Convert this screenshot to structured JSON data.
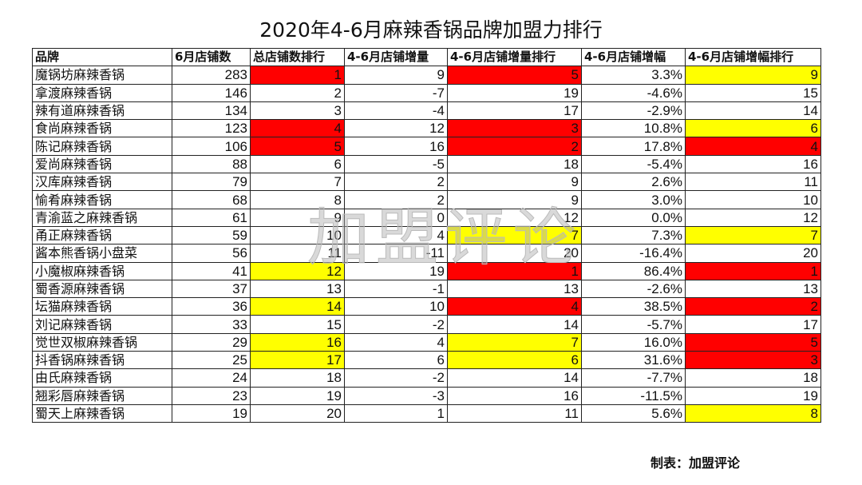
{
  "title": "2020年4-6月麻辣香锅品牌加盟力排行",
  "colors": {
    "red": "#ff0000",
    "yellow": "#ffff00"
  },
  "headers": [
    "品牌",
    "6月店铺数",
    "总店铺数排行",
    "4-6月店铺增量",
    "4-6月店铺增量排行",
    "4-6月店铺增幅",
    "4-6月店铺增幅排行"
  ],
  "rows": [
    {
      "cells": [
        "魔锅坊麻辣香锅",
        "283",
        "1",
        "9",
        "5",
        "3.3%",
        "9"
      ],
      "hl": [
        "",
        "",
        "red",
        "",
        "red",
        "",
        "yellow"
      ]
    },
    {
      "cells": [
        "拿渡麻辣香锅",
        "146",
        "2",
        "-7",
        "19",
        "-4.6%",
        "15"
      ],
      "hl": [
        "",
        "",
        "",
        "",
        "",
        "",
        ""
      ]
    },
    {
      "cells": [
        "辣有道麻辣香锅",
        "134",
        "3",
        "-4",
        "17",
        "-2.9%",
        "14"
      ],
      "hl": [
        "",
        "",
        "",
        "",
        "",
        "",
        ""
      ]
    },
    {
      "cells": [
        "食尚麻辣香锅",
        "123",
        "4",
        "12",
        "3",
        "10.8%",
        "6"
      ],
      "hl": [
        "",
        "",
        "red",
        "",
        "red",
        "",
        "yellow"
      ]
    },
    {
      "cells": [
        "陈记麻辣香锅",
        "106",
        "5",
        "16",
        "2",
        "17.8%",
        "4"
      ],
      "hl": [
        "",
        "",
        "red",
        "",
        "red",
        "",
        "red"
      ]
    },
    {
      "cells": [
        "爱尚麻辣香锅",
        "88",
        "6",
        "-5",
        "18",
        "-5.4%",
        "16"
      ],
      "hl": [
        "",
        "",
        "",
        "",
        "",
        "",
        ""
      ]
    },
    {
      "cells": [
        "汉库麻辣香锅",
        "79",
        "7",
        "2",
        "9",
        "2.6%",
        "11"
      ],
      "hl": [
        "",
        "",
        "",
        "",
        "",
        "",
        ""
      ]
    },
    {
      "cells": [
        "愉肴麻辣香锅",
        "68",
        "8",
        "2",
        "9",
        "3.0%",
        "10"
      ],
      "hl": [
        "",
        "",
        "",
        "",
        "",
        "",
        ""
      ]
    },
    {
      "cells": [
        "青渝蓝之麻辣香锅",
        "61",
        "9",
        "0",
        "12",
        "0.0%",
        "12"
      ],
      "hl": [
        "",
        "",
        "",
        "",
        "",
        "",
        ""
      ]
    },
    {
      "cells": [
        "甬正麻辣香锅",
        "59",
        "10",
        "4",
        "7",
        "7.3%",
        "7"
      ],
      "hl": [
        "",
        "",
        "",
        "",
        "yellow",
        "",
        "yellow"
      ]
    },
    {
      "cells": [
        "酱本熊香锅小盘菜",
        "56",
        "11",
        "-11",
        "20",
        "-16.4%",
        "20"
      ],
      "hl": [
        "",
        "",
        "",
        "",
        "",
        "",
        ""
      ]
    },
    {
      "cells": [
        "小魔椒麻辣香锅",
        "41",
        "12",
        "19",
        "1",
        "86.4%",
        "1"
      ],
      "hl": [
        "",
        "",
        "yellow",
        "",
        "red",
        "",
        "red"
      ]
    },
    {
      "cells": [
        "蜀香源麻辣香锅",
        "37",
        "13",
        "-1",
        "13",
        "-2.6%",
        "13"
      ],
      "hl": [
        "",
        "",
        "",
        "",
        "",
        "",
        ""
      ]
    },
    {
      "cells": [
        "坛猫麻辣香锅",
        "36",
        "14",
        "10",
        "4",
        "38.5%",
        "2"
      ],
      "hl": [
        "",
        "",
        "yellow",
        "",
        "red",
        "",
        "red"
      ]
    },
    {
      "cells": [
        "刘记麻辣香锅",
        "33",
        "15",
        "-2",
        "14",
        "-5.7%",
        "17"
      ],
      "hl": [
        "",
        "",
        "",
        "",
        "",
        "",
        ""
      ]
    },
    {
      "cells": [
        "觉世双椒麻辣香锅",
        "29",
        "16",
        "4",
        "7",
        "16.0%",
        "5"
      ],
      "hl": [
        "",
        "",
        "yellow",
        "",
        "yellow",
        "",
        "red"
      ]
    },
    {
      "cells": [
        "抖香锅麻辣香锅",
        "25",
        "17",
        "6",
        "6",
        "31.6%",
        "3"
      ],
      "hl": [
        "",
        "",
        "yellow",
        "",
        "yellow",
        "",
        "red"
      ]
    },
    {
      "cells": [
        "由氏麻辣香锅",
        "24",
        "18",
        "-2",
        "14",
        "-7.7%",
        "18"
      ],
      "hl": [
        "",
        "",
        "",
        "",
        "",
        "",
        ""
      ]
    },
    {
      "cells": [
        "翘彩唇麻辣香锅",
        "23",
        "19",
        "-3",
        "16",
        "-11.5%",
        "19"
      ],
      "hl": [
        "",
        "",
        "",
        "",
        "",
        "",
        ""
      ]
    },
    {
      "cells": [
        "蜀天上麻辣香锅",
        "19",
        "20",
        "1",
        "11",
        "5.6%",
        "8"
      ],
      "hl": [
        "",
        "",
        "",
        "",
        "",
        "",
        "yellow"
      ]
    }
  ],
  "watermark": "加盟评论",
  "footer": "制表：加盟评论"
}
